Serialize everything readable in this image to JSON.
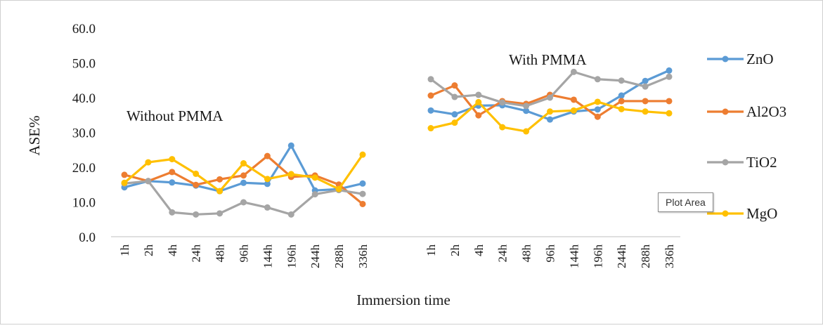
{
  "chart_data": {
    "type": "line",
    "xlabel": "Immersion time",
    "ylabel": "ASE%",
    "ylim": [
      0,
      60
    ],
    "yticks": [
      "0.0",
      "10.0",
      "20.0",
      "30.0",
      "40.0",
      "50.0",
      "60.0"
    ],
    "grid": false,
    "legend_position": "right",
    "groups": [
      {
        "label": "Without PMMA",
        "categories": [
          "1h",
          "2h",
          "4h",
          "24h",
          "48h",
          "96h",
          "144h",
          "196h",
          "244h",
          "288h",
          "336h"
        ],
        "series": [
          {
            "name": "ZnO",
            "values": [
              14.2,
              16.0,
              15.6,
              14.7,
              13.1,
              15.5,
              15.2,
              26.2,
              13.3,
              13.7,
              15.3
            ]
          },
          {
            "name": "Al2O3",
            "values": [
              17.8,
              16.0,
              18.6,
              14.9,
              16.5,
              17.6,
              23.2,
              17.2,
              17.6,
              15.0,
              9.4
            ]
          },
          {
            "name": "TiO2",
            "values": [
              15.3,
              16.0,
              7.0,
              6.4,
              6.7,
              9.9,
              8.4,
              6.4,
              12.2,
              13.4,
              12.3
            ]
          },
          {
            "name": "MgO",
            "values": [
              15.5,
              21.4,
              22.3,
              18.1,
              13.1,
              21.1,
              16.6,
              18.0,
              17.0,
              13.7,
              23.6
            ]
          }
        ]
      },
      {
        "label": "With PMMA",
        "categories": [
          "1h",
          "2h",
          "4h",
          "24h",
          "48h",
          "96h",
          "144h",
          "196h",
          "244h",
          "288h",
          "336h"
        ],
        "series": [
          {
            "name": "ZnO",
            "values": [
              36.3,
              35.2,
              37.7,
              37.8,
              36.2,
              33.7,
              36.0,
              36.6,
              40.6,
              44.8,
              47.8
            ]
          },
          {
            "name": "Al2O3",
            "values": [
              40.6,
              43.5,
              34.9,
              39.0,
              38.2,
              40.8,
              39.4,
              34.5,
              39.0,
              39.0,
              39.0
            ]
          },
          {
            "name": "TiO2",
            "values": [
              45.3,
              40.2,
              40.8,
              38.6,
              37.6,
              40.0,
              47.4,
              45.3,
              44.9,
              43.2,
              46.0
            ]
          },
          {
            "name": "MgO",
            "values": [
              31.2,
              32.8,
              38.7,
              31.5,
              30.3,
              36.0,
              36.3,
              38.8,
              36.7,
              36.0,
              35.5
            ]
          }
        ]
      }
    ],
    "legend": [
      {
        "name": "ZnO",
        "color": "#5B9BD5"
      },
      {
        "name": "Al2O3",
        "color": "#ED7D31"
      },
      {
        "name": "TiO2",
        "color": "#A5A5A5"
      },
      {
        "name": "MgO",
        "color": "#FFC000"
      }
    ]
  },
  "tooltip": "Plot Area"
}
